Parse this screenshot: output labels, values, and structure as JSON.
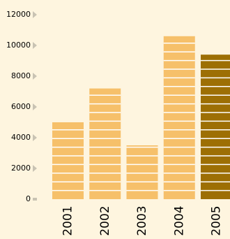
{
  "chart_data": {
    "type": "bar",
    "title": "",
    "xlabel": "",
    "ylabel": "",
    "categories": [
      "2001",
      "2002",
      "2003",
      "2004",
      "2005"
    ],
    "values": [
      5000,
      7200,
      3500,
      10600,
      9400
    ],
    "ylim": [
      0,
      12000
    ],
    "yticks": [
      {
        "value": 0,
        "label": "0"
      },
      {
        "value": 2000,
        "label": "2000"
      },
      {
        "value": 4000,
        "label": "4000"
      },
      {
        "value": 6000,
        "label": "6000"
      },
      {
        "value": 8000,
        "label": "8000"
      },
      {
        "value": 10000,
        "label": "10000"
      },
      {
        "value": 12000,
        "label": "12000"
      }
    ],
    "grid": false,
    "legend": "none",
    "highlighted_category": "2005",
    "colors": {
      "background": "#fef5df",
      "bar": "#f6c06a",
      "bar_highlight": "#9d6f04",
      "bar_stripe": "#ffffff",
      "tick_marker": "#c9c3b3"
    }
  }
}
